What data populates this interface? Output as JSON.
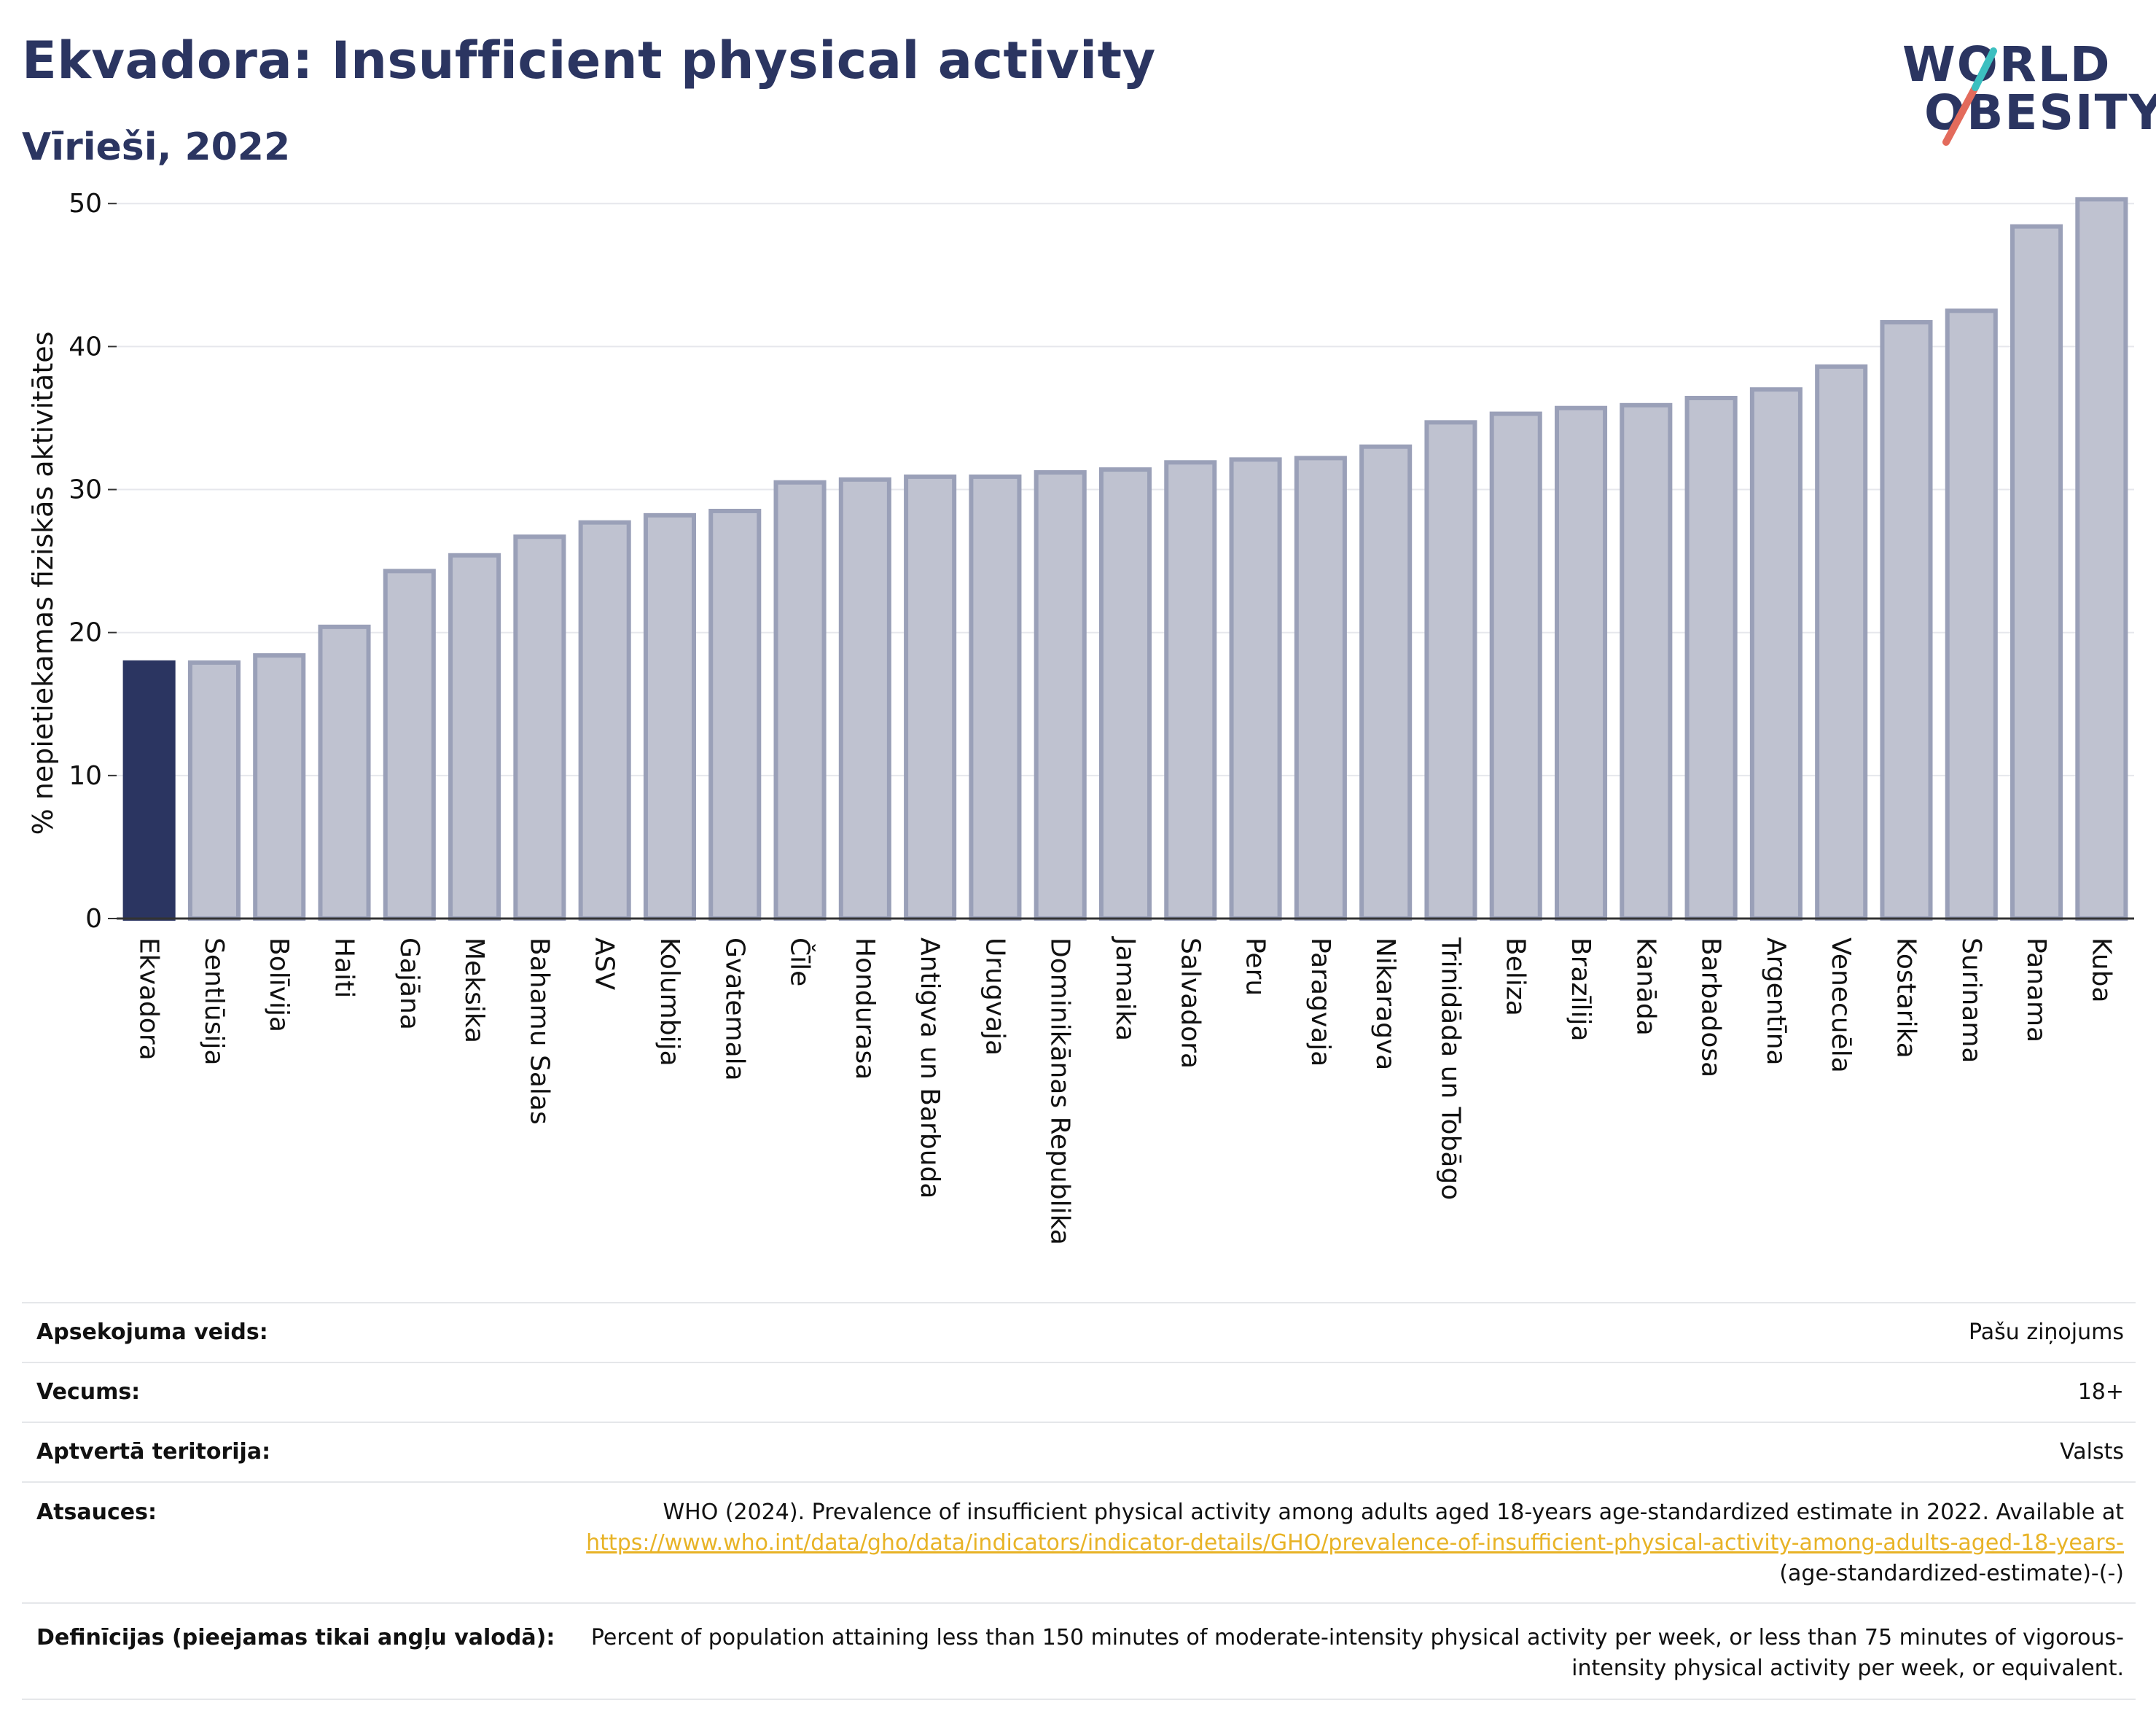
{
  "title": "Ekvadora: Insufficient physical activity",
  "subtitle": "Vīrieši, 2022",
  "logo": {
    "line1": "WORLD",
    "line2": "OBESITY"
  },
  "colors": {
    "highlight": "#2b3561",
    "bar": "#bfc2d0",
    "bar_border": "#9aa0b8",
    "text": "#2b3561",
    "link": "#e8b326"
  },
  "chart_data": {
    "type": "bar",
    "ylabel": "% nepietiekamas fiziskās aktivitātes",
    "ylim": [
      0,
      52
    ],
    "yticks": [
      0,
      10,
      20,
      30,
      40,
      50
    ],
    "grid": true,
    "highlight": "Ekvadora",
    "categories": [
      "Ekvadora",
      "Sentlūsija",
      "Bolīvija",
      "Haiti",
      "Gajāna",
      "Meksika",
      "Bahamu Salas",
      "ASV",
      "Kolumbija",
      "Gvatemala",
      "Čīle",
      "Hondurasa",
      "Antigva un Barbuda",
      "Urugvaja",
      "Dominikānas Republika",
      "Jamaika",
      "Salvadora",
      "Peru",
      "Paragvaja",
      "Nikaragva",
      "Trinidāda un Tobāgo",
      "Beliza",
      "Brazīlija",
      "Kanāda",
      "Barbadosa",
      "Argentīna",
      "Venecuēla",
      "Kostarika",
      "Surinama",
      "Panama",
      "Kuba"
    ],
    "values": [
      17.9,
      17.9,
      18.4,
      20.4,
      24.3,
      25.4,
      26.7,
      27.7,
      28.2,
      28.5,
      30.5,
      30.7,
      30.9,
      30.9,
      31.2,
      31.4,
      31.9,
      32.1,
      32.2,
      33.0,
      34.7,
      35.3,
      35.7,
      35.9,
      36.4,
      37.0,
      38.6,
      41.7,
      42.5,
      48.4,
      50.3
    ]
  },
  "meta": [
    {
      "label": "Apsekojuma veids:",
      "value": "Pašu ziņojums"
    },
    {
      "label": "Vecums:",
      "value": "18+"
    },
    {
      "label": "Aptvertā teritorija:",
      "value": "Valsts"
    },
    {
      "label": "Atsauces:",
      "value": "WHO (2024). Prevalence of insufficient physical activity among adults aged 18-years age-standardized estimate in 2022. Available at",
      "link": "https://www.who.int/data/gho/data/indicators/indicator-details/GHO/prevalence-of-insufficient-physical-activity-among-adults-aged-18-years-",
      "suffix": "(age-standardized-estimate)-(-)"
    },
    {
      "label": "Definīcijas (pieejamas tikai angļu valodā):",
      "value": "Percent of population attaining less than 150 minutes of moderate-intensity physical activity per week, or less than 75 minutes of vigorous-intensity physical activity per week, or equivalent."
    }
  ]
}
